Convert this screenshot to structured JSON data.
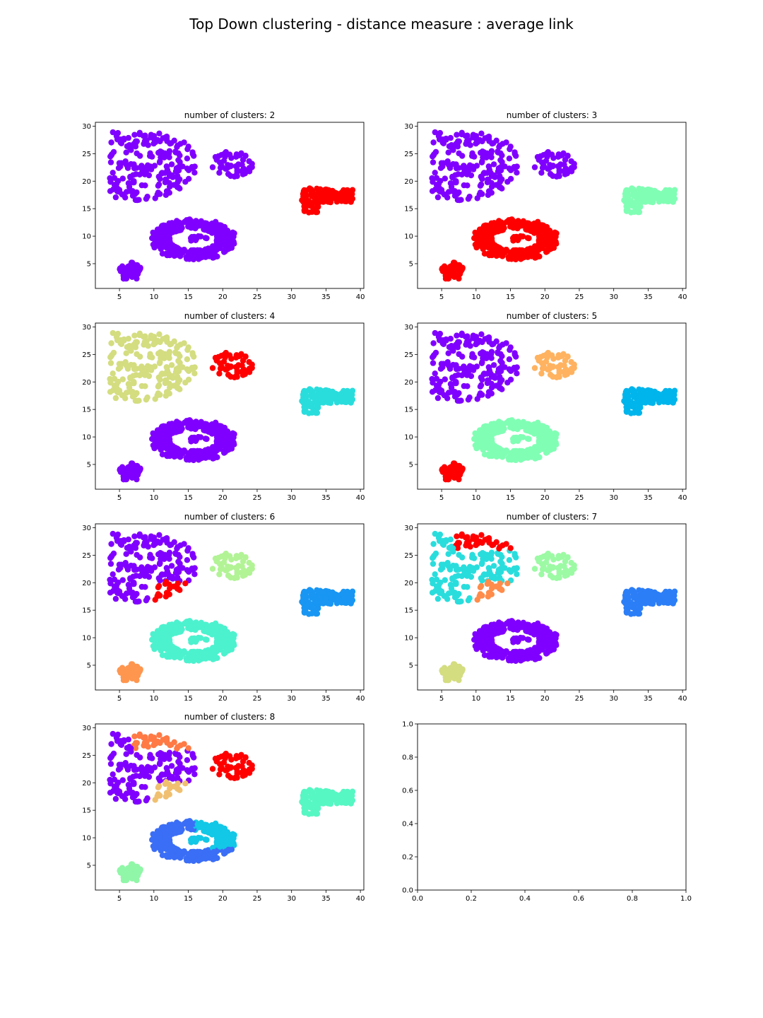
{
  "figure": {
    "title": "Top Down clustering - distance measure : average link"
  },
  "chart_data": [
    {
      "type": "scatter",
      "title": "number of clusters: 2",
      "xlim": [
        1.5,
        40.5
      ],
      "ylim": [
        0.5,
        30.7
      ],
      "xticks": [
        5,
        10,
        15,
        20,
        25,
        30,
        35,
        40
      ],
      "yticks": [
        5,
        10,
        15,
        20,
        25,
        30
      ],
      "clusters": {
        "A": "#8000ff",
        "B": "#8000ff",
        "C": "#8000ff",
        "D": "#8000ff",
        "E": "#8000ff",
        "F": "#ff0000",
        "G": "#8000ff",
        "H": "#8000ff"
      },
      "legend": "none"
    },
    {
      "type": "scatter",
      "title": "number of clusters: 3",
      "xlim": [
        1.5,
        40.5
      ],
      "ylim": [
        0.5,
        30.7
      ],
      "xticks": [
        5,
        10,
        15,
        20,
        25,
        30,
        35,
        40
      ],
      "yticks": [
        5,
        10,
        15,
        20,
        25,
        30
      ],
      "clusters": {
        "A": "#8000ff",
        "B": "#8000ff",
        "C": "#8000ff",
        "D": "#8000ff",
        "E": "#8000ff",
        "F": "#80ffb4",
        "G": "#ff0000",
        "H": "#ff0000"
      },
      "legend": "none"
    },
    {
      "type": "scatter",
      "title": "number of clusters: 4",
      "xlim": [
        1.5,
        40.5
      ],
      "ylim": [
        0.5,
        30.7
      ],
      "xticks": [
        5,
        10,
        15,
        20,
        25,
        30,
        35,
        40
      ],
      "yticks": [
        5,
        10,
        15,
        20,
        25,
        30
      ],
      "clusters": {
        "A": "#d4dd80",
        "B": "#d4dd80",
        "C": "#d4dd80",
        "D": "#d4dd80",
        "E": "#ff0000",
        "F": "#2adddd",
        "G": "#8000ff",
        "H": "#8000ff"
      },
      "legend": "none"
    },
    {
      "type": "scatter",
      "title": "number of clusters: 5",
      "xlim": [
        1.5,
        40.5
      ],
      "ylim": [
        0.5,
        30.7
      ],
      "xticks": [
        5,
        10,
        15,
        20,
        25,
        30,
        35,
        40
      ],
      "yticks": [
        5,
        10,
        15,
        20,
        25,
        30
      ],
      "clusters": {
        "A": "#8000ff",
        "B": "#8000ff",
        "C": "#8000ff",
        "D": "#8000ff",
        "E": "#ffb360",
        "F": "#00b5eb",
        "G": "#80ffb4",
        "H": "#ff0000"
      },
      "legend": "none"
    },
    {
      "type": "scatter",
      "title": "number of clusters: 6",
      "xlim": [
        1.5,
        40.5
      ],
      "ylim": [
        0.5,
        30.7
      ],
      "xticks": [
        5,
        10,
        15,
        20,
        25,
        30,
        35,
        40
      ],
      "yticks": [
        5,
        10,
        15,
        20,
        25,
        30
      ],
      "clusters": {
        "A": "#8000ff",
        "B": "#8000ff",
        "C": "#8000ff",
        "D": "#ff0000",
        "E": "#b2f396",
        "F": "#1996f3",
        "G": "#4cf2ce",
        "H": "#ff964f"
      },
      "legend": "none"
    },
    {
      "type": "scatter",
      "title": "number of clusters: 7",
      "xlim": [
        1.5,
        40.5
      ],
      "ylim": [
        0.5,
        30.7
      ],
      "xticks": [
        5,
        10,
        15,
        20,
        25,
        30,
        35,
        40
      ],
      "yticks": [
        5,
        10,
        15,
        20,
        25,
        30
      ],
      "clusters": {
        "A": "#2adddd",
        "B": "#2adddd",
        "C": "#ff0000",
        "D": "#ff8c4a",
        "E": "#9cfaa4",
        "F": "#2c7ef7",
        "G": "#8000ff",
        "H": "#d4dd80"
      },
      "legend": "none"
    },
    {
      "type": "scatter",
      "title": "number of clusters: 8",
      "xlim": [
        1.5,
        40.5
      ],
      "ylim": [
        0.5,
        30.7
      ],
      "xticks": [
        5,
        10,
        15,
        20,
        25,
        30,
        35,
        40
      ],
      "yticks": [
        5,
        10,
        15,
        20,
        25,
        30
      ],
      "clusters": {
        "A": "#8000ff",
        "B": "#8000ff",
        "C": "#ff7a45",
        "D": "#f0c070",
        "E": "#ff0000",
        "F": "#56f7c3",
        "G": "#3b6ef6",
        "H": "#90f7a8"
      },
      "ring_right": "#12c8e6",
      "legend": "none"
    },
    {
      "type": "scatter",
      "title": "",
      "xlim": [
        0,
        1
      ],
      "ylim": [
        0,
        1
      ],
      "xticks": [
        0.0,
        0.2,
        0.4,
        0.6,
        0.8,
        1.0
      ],
      "yticks": [
        0.0,
        0.2,
        0.4,
        0.6,
        0.8,
        1.0
      ],
      "empty": true,
      "legend": "none"
    }
  ]
}
